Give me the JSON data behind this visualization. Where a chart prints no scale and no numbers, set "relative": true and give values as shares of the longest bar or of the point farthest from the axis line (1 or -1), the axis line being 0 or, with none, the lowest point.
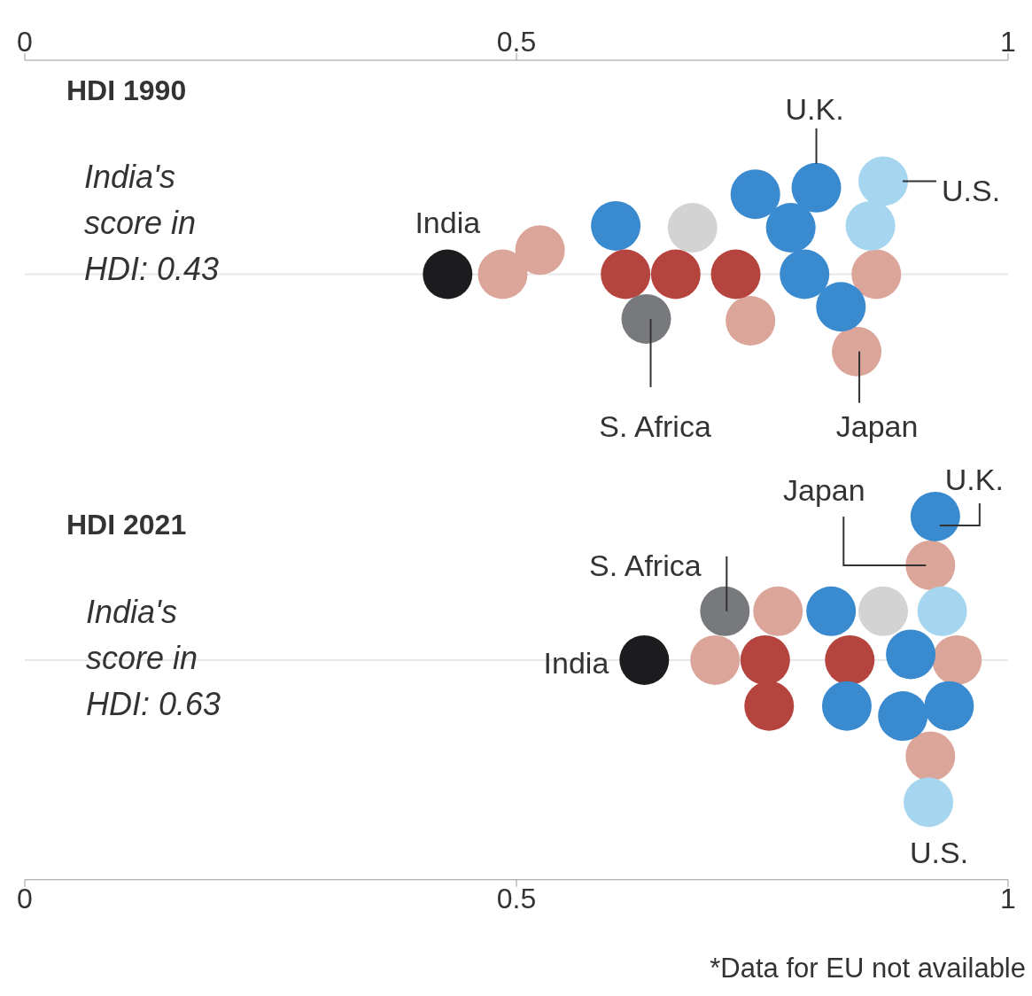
{
  "chart_data": [
    {
      "type": "scatter",
      "title": "HDI 1990",
      "subtitle": "India's score in HDI: 0.43",
      "relative": true,
      "marker": "circle",
      "xlim": [
        0,
        1
      ],
      "xticks": [
        0,
        0.5,
        1
      ],
      "series": [
        {
          "color": "#1c1c1e",
          "x": [
            0.43
          ],
          "values": [
            0
          ]
        },
        {
          "color": "#dba59a",
          "x": [
            0.486,
            0.524,
            0.738,
            0.866,
            0.846
          ],
          "values": [
            0,
            0.26,
            -0.5,
            0,
            -0.83
          ]
        },
        {
          "color": "#3a8ad0",
          "x": [
            0.601,
            0.743,
            0.805,
            0.779,
            0.793,
            0.83
          ],
          "values": [
            0.52,
            0.86,
            0.93,
            0.5,
            0,
            -0.35
          ]
        },
        {
          "color": "#d3d3d3",
          "x": [
            0.679
          ],
          "values": [
            0.5
          ]
        },
        {
          "color": "#b5443f",
          "x": [
            0.611,
            0.662,
            0.723
          ],
          "values": [
            0,
            0,
            0
          ]
        },
        {
          "color": "#77797c",
          "x": [
            0.632
          ],
          "values": [
            -0.48
          ]
        },
        {
          "color": "#a6d5f0",
          "x": [
            0.873,
            0.86
          ],
          "values": [
            1,
            0.52
          ]
        }
      ],
      "annotations": [
        {
          "text": "India",
          "x": 0.43,
          "y": 0
        },
        {
          "text": "U.K.",
          "x": 0.805,
          "y": 0.93
        },
        {
          "text": "U.S.",
          "x": 0.873,
          "y": 1
        },
        {
          "text": "S. Africa",
          "x": 0.632,
          "y": -0.48
        },
        {
          "text": "Japan",
          "x": 0.846,
          "y": -0.83
        }
      ]
    },
    {
      "type": "scatter",
      "title": "HDI 2021",
      "subtitle": "India's score in HDI: 0.63",
      "relative": true,
      "marker": "circle",
      "xlim": [
        0,
        1
      ],
      "xticks": [
        0,
        0.5,
        1
      ],
      "series": [
        {
          "color": "#1c1c1e",
          "x": [
            0.63
          ],
          "values": [
            0
          ]
        },
        {
          "color": "#77797c",
          "x": [
            0.712
          ],
          "values": [
            0.34
          ]
        },
        {
          "color": "#dba59a",
          "x": [
            0.766,
            0.702,
            0.921,
            0.948,
            0.921
          ],
          "values": [
            0.34,
            0,
            0.66,
            0,
            -0.67
          ]
        },
        {
          "color": "#b5443f",
          "x": [
            0.753,
            0.757,
            0.839
          ],
          "values": [
            0,
            -0.32,
            0
          ]
        },
        {
          "color": "#3a8ad0",
          "x": [
            0.82,
            0.836,
            0.901,
            0.893,
            0.94,
            0.926
          ],
          "values": [
            0.34,
            -0.32,
            0.04,
            -0.39,
            -0.32,
            1
          ]
        },
        {
          "color": "#d3d3d3",
          "x": [
            0.873
          ],
          "values": [
            0.34
          ]
        },
        {
          "color": "#a6d5f0",
          "x": [
            0.933,
            0.919
          ],
          "values": [
            0.34,
            -0.99
          ]
        }
      ],
      "annotations": [
        {
          "text": "India",
          "x": 0.63,
          "y": 0
        },
        {
          "text": "S. Africa",
          "x": 0.712,
          "y": 0.34
        },
        {
          "text": "Japan",
          "x": 0.921,
          "y": 0.66
        },
        {
          "text": "U.K.",
          "x": 0.926,
          "y": 1
        },
        {
          "text": "U.S.",
          "x": 0.919,
          "y": -0.99
        },
        "*Data for EU not available"
      ]
    }
  ]
}
